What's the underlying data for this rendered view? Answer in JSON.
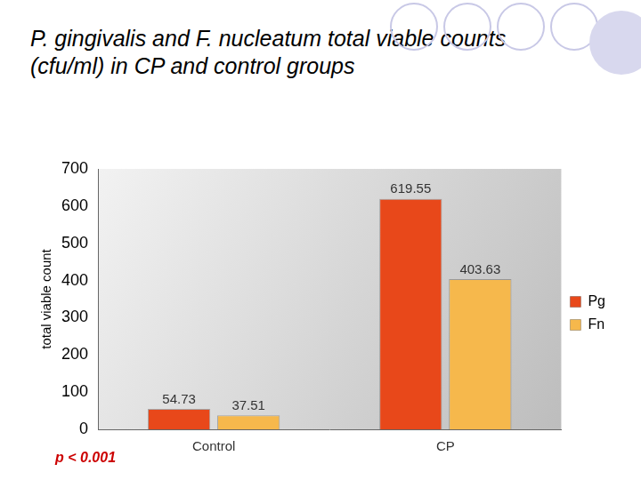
{
  "chart_data": {
    "type": "bar",
    "title": "P. gingivalis and F. nucleatum total viable counts (cfu/ml) in CP and control groups",
    "y_label": "total viable count",
    "annotations": [
      "p < 0.001"
    ],
    "categories": [
      "Control",
      "CP"
    ],
    "series": [
      {
        "name": "Pg",
        "color": "#e8481a",
        "values": [
          54.73,
          619.55
        ]
      },
      {
        "name": "Fn",
        "color": "#f6b84c",
        "values": [
          37.51,
          403.63
        ]
      }
    ],
    "ylim": [
      0,
      700
    ],
    "yticks": [
      0,
      100,
      200,
      300,
      400,
      500,
      600,
      700
    ],
    "grid": false,
    "legend": "right",
    "data_labels": true
  }
}
